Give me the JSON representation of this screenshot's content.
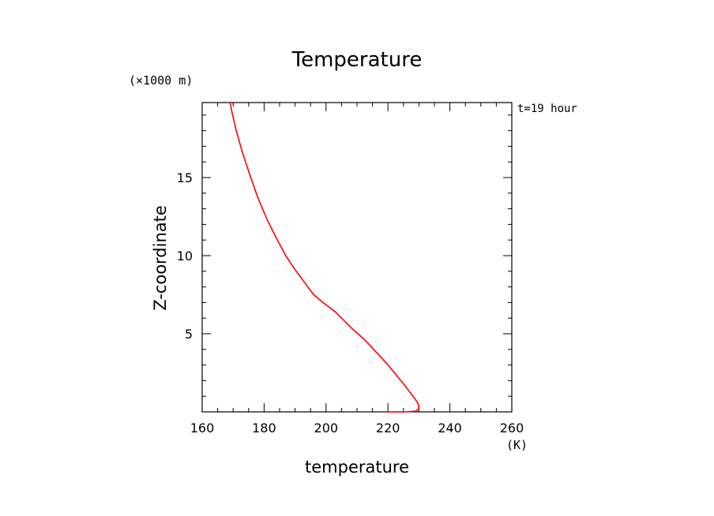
{
  "chart_data": {
    "type": "line",
    "title": "Temperature",
    "xlabel": "temperature",
    "ylabel": "Z-coordinate",
    "x_unit": "(K)",
    "y_unit": "(×1000 m)",
    "annotation": "t=19 hour",
    "xlim": [
      160,
      260
    ],
    "ylim": [
      0,
      19.8
    ],
    "x_ticks": [
      160,
      180,
      200,
      220,
      240,
      260
    ],
    "y_ticks": [
      5,
      10,
      15
    ],
    "grid": false,
    "series": [
      {
        "color": "#ff0000",
        "points": [
          [
            219.5,
            0.0
          ],
          [
            226.0,
            0.0
          ],
          [
            229.0,
            0.05
          ],
          [
            230.0,
            0.2
          ],
          [
            229.8,
            0.5
          ],
          [
            228.5,
            0.9
          ],
          [
            225.0,
            1.8
          ],
          [
            220.0,
            3.0
          ],
          [
            214.0,
            4.3
          ],
          [
            212.0,
            4.7
          ],
          [
            208.0,
            5.4
          ],
          [
            203.0,
            6.4
          ],
          [
            199.0,
            7.0
          ],
          [
            196.0,
            7.5
          ],
          [
            193.0,
            8.3
          ],
          [
            190.0,
            9.1
          ],
          [
            187.0,
            10.0
          ],
          [
            184.0,
            11.1
          ],
          [
            181.0,
            12.3
          ],
          [
            178.0,
            13.7
          ],
          [
            175.5,
            15.1
          ],
          [
            173.0,
            16.6
          ],
          [
            171.0,
            18.0
          ],
          [
            169.5,
            19.3
          ],
          [
            169.0,
            19.8
          ]
        ]
      }
    ]
  }
}
